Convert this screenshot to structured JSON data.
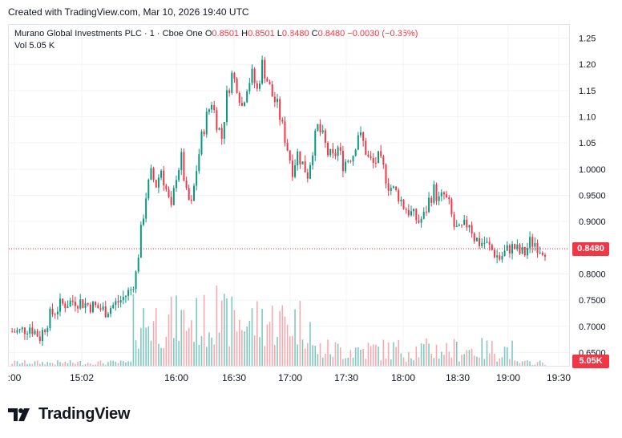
{
  "header": {
    "created": "Created with TradingView.com, Mar 10, 2026 19:40 UTC"
  },
  "legend": {
    "symbol": "Murano Global Investments PLC · 1 · Cboe One",
    "open_label": "O",
    "open": "0.8501",
    "high_label": "H",
    "high": "0.8501",
    "low_label": "L",
    "low": "0.8480",
    "close_label": "C",
    "close": "0.8480",
    "change": "−0.0030 (−0.35%)",
    "vol_label": "Vol",
    "vol": "5.05 K"
  },
  "price_tag": "0.8480",
  "volume_tag": "5.05K",
  "footer": {
    "brand": "TradingView"
  },
  "colors": {
    "up": "#089981",
    "down": "#f23645",
    "up_vol": "#7fcac0",
    "down_vol": "#f7a9b0",
    "grid": "#f0f3fa"
  },
  "chart_data": {
    "type": "candlestick",
    "y_ticks": [
      "1.25",
      "1.20",
      "1.15",
      "1.10",
      "1.05",
      "1.0000",
      "0.9500",
      "0.9000",
      "0.8500",
      "0.8000",
      "0.7500",
      "0.7000",
      "0.6500"
    ],
    "y_tick_values": [
      1.25,
      1.2,
      1.15,
      1.1,
      1.05,
      1.0,
      0.95,
      0.9,
      0.85,
      0.8,
      0.75,
      0.7,
      0.65
    ],
    "ylim": [
      0.64,
      1.26
    ],
    "x_ticks": [
      ":00",
      "15:02",
      "16:00",
      "16:30",
      "17:00",
      "17:30",
      "18:00",
      "18:30",
      "19:00",
      "19:30"
    ],
    "last_price": 0.848,
    "volume_last": "5.05K",
    "price_path": [
      [
        0,
        0.69
      ],
      [
        4,
        0.69
      ],
      [
        8,
        0.7
      ],
      [
        12,
        0.68
      ],
      [
        16,
        0.72
      ],
      [
        20,
        0.74
      ],
      [
        26,
        0.75
      ],
      [
        32,
        0.74
      ],
      [
        38,
        0.73
      ],
      [
        44,
        0.75
      ],
      [
        48,
        0.77
      ],
      [
        50,
        0.8
      ],
      [
        52,
        0.88
      ],
      [
        54,
        0.95
      ],
      [
        56,
        0.99
      ],
      [
        58,
        0.97
      ],
      [
        60,
        1.0
      ],
      [
        62,
        0.96
      ],
      [
        64,
        0.92
      ],
      [
        66,
        0.99
      ],
      [
        68,
        1.02
      ],
      [
        70,
        0.95
      ],
      [
        72,
        0.93
      ],
      [
        74,
        1.0
      ],
      [
        76,
        1.06
      ],
      [
        78,
        1.1
      ],
      [
        80,
        1.13
      ],
      [
        82,
        1.09
      ],
      [
        84,
        1.06
      ],
      [
        86,
        1.14
      ],
      [
        88,
        1.18
      ],
      [
        90,
        1.16
      ],
      [
        92,
        1.12
      ],
      [
        94,
        1.16
      ],
      [
        96,
        1.18
      ],
      [
        98,
        1.15
      ],
      [
        100,
        1.2
      ],
      [
        102,
        1.17
      ],
      [
        104,
        1.14
      ],
      [
        106,
        1.12
      ],
      [
        108,
        1.08
      ],
      [
        110,
        1.04
      ],
      [
        112,
        1.0
      ],
      [
        114,
        1.03
      ],
      [
        116,
        1.01
      ],
      [
        118,
        0.99
      ],
      [
        120,
        1.04
      ],
      [
        122,
        1.08
      ],
      [
        124,
        1.06
      ],
      [
        126,
        1.03
      ],
      [
        128,
        1.02
      ],
      [
        130,
        1.04
      ],
      [
        132,
        1.01
      ],
      [
        134,
        1.02
      ],
      [
        136,
        1.03
      ],
      [
        138,
        1.07
      ],
      [
        140,
        1.05
      ],
      [
        142,
        1.02
      ],
      [
        144,
        1.01
      ],
      [
        146,
        1.02
      ],
      [
        148,
        1.0
      ],
      [
        150,
        0.97
      ],
      [
        152,
        0.96
      ],
      [
        154,
        0.95
      ],
      [
        156,
        0.93
      ],
      [
        158,
        0.92
      ],
      [
        160,
        0.91
      ],
      [
        162,
        0.9
      ],
      [
        164,
        0.91
      ],
      [
        166,
        0.94
      ],
      [
        168,
        0.96
      ],
      [
        170,
        0.94
      ],
      [
        172,
        0.95
      ],
      [
        174,
        0.93
      ],
      [
        176,
        0.89
      ],
      [
        178,
        0.88
      ],
      [
        180,
        0.89
      ],
      [
        182,
        0.9
      ],
      [
        184,
        0.87
      ],
      [
        186,
        0.86
      ],
      [
        188,
        0.86
      ],
      [
        190,
        0.85
      ],
      [
        192,
        0.84
      ],
      [
        194,
        0.83
      ],
      [
        196,
        0.84
      ],
      [
        198,
        0.85
      ],
      [
        200,
        0.85
      ],
      [
        202,
        0.84
      ],
      [
        204,
        0.84
      ],
      [
        206,
        0.86
      ],
      [
        208,
        0.86
      ],
      [
        210,
        0.85
      ],
      [
        212,
        0.848
      ]
    ]
  }
}
